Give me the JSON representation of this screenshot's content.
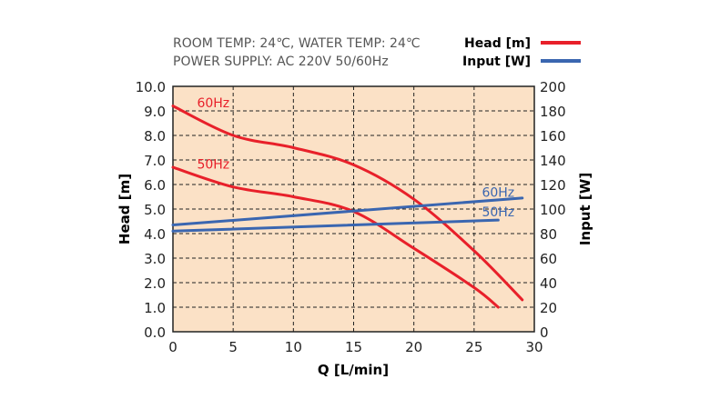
{
  "chart_data": {
    "type": "line",
    "notes": [
      "ROOM TEMP: 24℃, WATER TEMP: 24℃",
      "POWER SUPPLY: AC 220V 50/60Hz"
    ],
    "xlabel": "Q [L/min]",
    "ylabel": "Head [m]",
    "y2label": "Input [W]",
    "xlim": [
      0,
      30
    ],
    "ylim": [
      0,
      10
    ],
    "y2lim": [
      0,
      200
    ],
    "xticks": [
      "0",
      "5",
      "10",
      "15",
      "20",
      "25",
      "30"
    ],
    "yticks": [
      "0.0",
      "1.0",
      "2.0",
      "3.0",
      "4.0",
      "5.0",
      "6.0",
      "7.0",
      "8.0",
      "9.0",
      "10.0"
    ],
    "y2ticks": [
      "0",
      "20",
      "40",
      "60",
      "80",
      "100",
      "120",
      "140",
      "160",
      "180",
      "200"
    ],
    "grid": true,
    "legend": {
      "position": "top-right",
      "entries": [
        {
          "name": "Head [m]",
          "color": "#e8202a"
        },
        {
          "name": "Input [W]",
          "color": "#3a66b0"
        }
      ]
    },
    "series": [
      {
        "name": "Head 60Hz",
        "label": "60Hz",
        "axis": "left",
        "color": "#e8202a",
        "x": [
          0,
          5,
          10,
          15,
          20,
          25,
          29
        ],
        "y": [
          9.2,
          8.0,
          7.5,
          6.8,
          5.4,
          3.3,
          1.3
        ]
      },
      {
        "name": "Head 50Hz",
        "label": "50Hz",
        "axis": "left",
        "color": "#e8202a",
        "x": [
          0,
          5,
          10,
          15,
          20,
          25,
          27
        ],
        "y": [
          6.7,
          5.9,
          5.5,
          4.9,
          3.4,
          1.8,
          1.0
        ]
      },
      {
        "name": "Input 60Hz",
        "label": "60Hz",
        "axis": "right",
        "color": "#3a66b0",
        "x": [
          0,
          29
        ],
        "y": [
          87,
          109
        ]
      },
      {
        "name": "Input 50Hz",
        "label": "50Hz",
        "axis": "right",
        "color": "#3a66b0",
        "x": [
          0,
          27
        ],
        "y": [
          82,
          91
        ]
      }
    ]
  }
}
